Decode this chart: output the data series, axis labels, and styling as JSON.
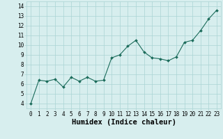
{
  "x": [
    0,
    1,
    2,
    3,
    4,
    5,
    6,
    7,
    8,
    9,
    10,
    11,
    12,
    13,
    14,
    15,
    16,
    17,
    18,
    19,
    20,
    21,
    22,
    23
  ],
  "y": [
    4.0,
    6.4,
    6.3,
    6.5,
    5.7,
    6.7,
    6.3,
    6.7,
    6.3,
    6.4,
    8.7,
    9.0,
    9.9,
    10.5,
    9.3,
    8.7,
    8.6,
    8.4,
    8.8,
    10.3,
    10.5,
    11.5,
    12.7,
    13.6
  ],
  "line_color": "#1a6b5a",
  "marker": "D",
  "marker_size": 2.0,
  "bg_color": "#d7eeee",
  "grid_color": "#aad4d4",
  "xlabel": "Humidex (Indice chaleur)",
  "ylabel": "",
  "xlim": [
    -0.5,
    23.5
  ],
  "ylim": [
    3.5,
    14.5
  ],
  "yticks": [
    4,
    5,
    6,
    7,
    8,
    9,
    10,
    11,
    12,
    13,
    14
  ],
  "xticks": [
    0,
    1,
    2,
    3,
    4,
    5,
    6,
    7,
    8,
    9,
    10,
    11,
    12,
    13,
    14,
    15,
    16,
    17,
    18,
    19,
    20,
    21,
    22,
    23
  ],
  "tick_fontsize": 5.5,
  "xlabel_fontsize": 7.5,
  "linewidth": 0.8
}
